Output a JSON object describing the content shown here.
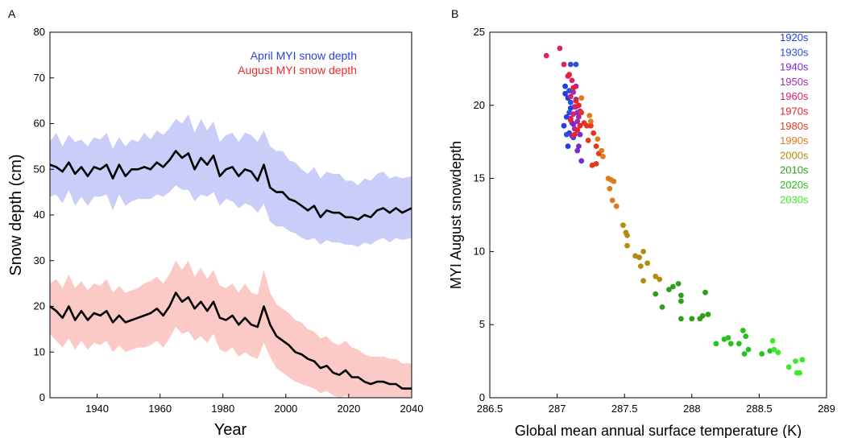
{
  "panels": {
    "a_label": "A",
    "b_label": "B"
  },
  "chart_data": [
    {
      "type": "line",
      "panel": "A",
      "xlabel": "Year",
      "ylabel": "Snow depth (cm)",
      "xlim": [
        1925,
        2040
      ],
      "ylim": [
        0,
        80
      ],
      "xticks": [
        1940,
        1960,
        1980,
        2000,
        2020,
        2040
      ],
      "yticks": [
        0,
        10,
        20,
        30,
        40,
        50,
        60,
        70,
        80
      ],
      "grid": false,
      "legend_position": "top-right",
      "legend": [
        {
          "label": "April MYI snow depth",
          "color": "#2b3fe0"
        },
        {
          "label": "August MYI snow depth",
          "color": "#ee2a2a"
        }
      ],
      "series": [
        {
          "name": "April MYI snow depth",
          "line_color": "#000000",
          "band_color": "#c9cdf7",
          "x": [
            1925,
            1927,
            1929,
            1931,
            1933,
            1935,
            1937,
            1939,
            1941,
            1943,
            1945,
            1947,
            1949,
            1951,
            1953,
            1955,
            1957,
            1959,
            1961,
            1963,
            1965,
            1967,
            1969,
            1971,
            1973,
            1975,
            1977,
            1979,
            1981,
            1983,
            1985,
            1987,
            1989,
            1991,
            1993,
            1995,
            1997,
            1999,
            2001,
            2003,
            2005,
            2007,
            2009,
            2011,
            2013,
            2015,
            2017,
            2019,
            2021,
            2023,
            2025,
            2027,
            2029,
            2031,
            2033,
            2035,
            2037,
            2040
          ],
          "mean": [
            51,
            50.5,
            49.5,
            51.5,
            49,
            50.5,
            48.5,
            50.5,
            50,
            51,
            48,
            51,
            48.5,
            50,
            50,
            50.5,
            50,
            51.5,
            50.5,
            52,
            54,
            52.5,
            53.5,
            50,
            52.5,
            51,
            53,
            48.5,
            50,
            50.5,
            48.5,
            50,
            49.5,
            47.5,
            51,
            46,
            45,
            45,
            43.5,
            43,
            42,
            41,
            42,
            39.5,
            41,
            40.5,
            40.5,
            39.5,
            39.5,
            39,
            40,
            39.5,
            41,
            41.5,
            40.5,
            41.5,
            40.5,
            41.5
          ],
          "upper": [
            56,
            58,
            55,
            57.5,
            56,
            56.5,
            55,
            57,
            56.5,
            58,
            54.5,
            57,
            55,
            56.5,
            56,
            58,
            56.5,
            58.5,
            57.5,
            59,
            61,
            60,
            62,
            58,
            61,
            58.5,
            60.5,
            56,
            57.5,
            58,
            56,
            58,
            57.5,
            56,
            58.5,
            55,
            54,
            54,
            52,
            51.5,
            50,
            49,
            50.5,
            48,
            49.5,
            49,
            49,
            47.5,
            47.5,
            46.5,
            48,
            47.5,
            49,
            49.5,
            48,
            48.5,
            48,
            48.5
          ],
          "lower": [
            44,
            44.5,
            42.5,
            45.5,
            42,
            44,
            42,
            44,
            44,
            44.5,
            41,
            44.5,
            42,
            43,
            43.5,
            43.5,
            43.5,
            44.5,
            44,
            45,
            46.5,
            45.5,
            45.5,
            43,
            44.5,
            44,
            45,
            42,
            43.5,
            43,
            41.5,
            42.5,
            42,
            40.5,
            42.5,
            38.5,
            37.5,
            37.5,
            36.5,
            36,
            35,
            34.5,
            35,
            33.5,
            34.5,
            34,
            34,
            33.5,
            33.5,
            33,
            34,
            33.5,
            34.5,
            35,
            34,
            35,
            34.5,
            35
          ]
        },
        {
          "name": "August MYI snow depth",
          "line_color": "#000000",
          "band_color": "#fbc9c6",
          "x": [
            1925,
            1927,
            1929,
            1931,
            1933,
            1935,
            1937,
            1939,
            1941,
            1943,
            1945,
            1947,
            1949,
            1951,
            1953,
            1955,
            1957,
            1959,
            1961,
            1963,
            1965,
            1967,
            1969,
            1971,
            1973,
            1975,
            1977,
            1979,
            1981,
            1983,
            1985,
            1987,
            1989,
            1991,
            1993,
            1995,
            1997,
            1999,
            2001,
            2003,
            2005,
            2007,
            2009,
            2011,
            2013,
            2015,
            2017,
            2019,
            2021,
            2023,
            2025,
            2027,
            2029,
            2031,
            2033,
            2035,
            2037,
            2040
          ],
          "mean": [
            20,
            19,
            17.5,
            20,
            17,
            19,
            17,
            18.5,
            18,
            19,
            16.5,
            18,
            16.5,
            17,
            17.5,
            18,
            18.5,
            19.5,
            18,
            20,
            23,
            21,
            22,
            19.5,
            21,
            19,
            21,
            17.5,
            17,
            18,
            16,
            17.5,
            16,
            15.5,
            20,
            16,
            13.5,
            12.5,
            11.5,
            10,
            9.5,
            8.5,
            8,
            6.5,
            7,
            5.5,
            5,
            6,
            4.5,
            4.5,
            3.5,
            3,
            3.5,
            3.5,
            3,
            3,
            2,
            2
          ],
          "upper": [
            25,
            26,
            24,
            27,
            24,
            25.5,
            23.5,
            25,
            24.5,
            26,
            23,
            24.5,
            23,
            23.5,
            24,
            25,
            25.5,
            26.5,
            25,
            27,
            30,
            28,
            30,
            26.5,
            28.5,
            26,
            28,
            24.5,
            24,
            25,
            23,
            25,
            23,
            22.5,
            28,
            23,
            20.5,
            19.5,
            18.5,
            17,
            16.5,
            15,
            14.5,
            13,
            13.5,
            12,
            11.5,
            12.5,
            11,
            10.5,
            9.5,
            9,
            9,
            9,
            8.5,
            8.5,
            7.5,
            7.5
          ],
          "lower": [
            14,
            12.5,
            11,
            13,
            10.5,
            12.5,
            10.5,
            12,
            11.5,
            12.5,
            10,
            11.5,
            10,
            10.5,
            11,
            11,
            11.5,
            12.5,
            11,
            13,
            15.5,
            14,
            14.5,
            12.5,
            13.5,
            12,
            14,
            10.5,
            10,
            11,
            9,
            10,
            9,
            8.5,
            12,
            9,
            6.5,
            5.5,
            4.5,
            3.5,
            3,
            2.5,
            2,
            1,
            1.5,
            0.5,
            0,
            0.5,
            0,
            0,
            0,
            0,
            0,
            0,
            0,
            0,
            0,
            0
          ]
        }
      ]
    },
    {
      "type": "scatter",
      "panel": "B",
      "xlabel": "Global mean annual surface temperature (K)",
      "ylabel": "MYI August snowdepth",
      "xlim": [
        286.5,
        289
      ],
      "ylim": [
        0,
        25
      ],
      "xticks": [
        "286.5",
        "287",
        "287.5",
        "288",
        "288.5",
        "289"
      ],
      "yticks": [
        0,
        5,
        10,
        15,
        20,
        25
      ],
      "grid": false,
      "legend_position": "top-right",
      "series": [
        {
          "name": "1920s",
          "color": "#1f3de8",
          "points": [
            [
              287.05,
              18.6
            ],
            [
              287.07,
              19.2
            ],
            [
              287.08,
              20.5
            ],
            [
              287.06,
              21.3
            ],
            [
              287.09,
              18.1
            ],
            [
              287.1,
              19.8
            ],
            [
              287.08,
              17.2
            ],
            [
              287.06,
              20.8
            ]
          ]
        },
        {
          "name": "1930s",
          "color": "#2850dd",
          "points": [
            [
              287.07,
              18.0
            ],
            [
              287.09,
              19.5
            ],
            [
              287.1,
              22.8
            ],
            [
              287.14,
              22.8
            ],
            [
              287.11,
              18.8
            ],
            [
              287.09,
              21.0
            ],
            [
              287.12,
              17.8
            ],
            [
              287.1,
              20.2
            ]
          ]
        },
        {
          "name": "1940s",
          "color": "#7a2ad0",
          "points": [
            [
              287.12,
              18.7
            ],
            [
              287.15,
              19.5
            ],
            [
              287.17,
              18.0
            ],
            [
              287.15,
              16.9
            ],
            [
              287.18,
              16.2
            ],
            [
              287.13,
              19.9
            ],
            [
              287.16,
              17.2
            ],
            [
              287.14,
              20.4
            ]
          ]
        },
        {
          "name": "1950s",
          "color": "#a52aa8",
          "points": [
            [
              287.1,
              19.1
            ],
            [
              287.13,
              18.4
            ],
            [
              287.16,
              19.2
            ],
            [
              287.12,
              20.9
            ],
            [
              287.14,
              21.3
            ],
            [
              287.11,
              17.9
            ],
            [
              287.15,
              18.9
            ],
            [
              287.17,
              19.6
            ]
          ]
        },
        {
          "name": "1960s",
          "color": "#dc1e6e",
          "points": [
            [
              286.92,
              23.4
            ],
            [
              287.02,
              23.9
            ],
            [
              287.05,
              22.8
            ],
            [
              287.08,
              22.0
            ],
            [
              287.11,
              21.7
            ],
            [
              287.12,
              19.4
            ],
            [
              287.1,
              20.6
            ],
            [
              287.14,
              19.9
            ]
          ]
        },
        {
          "name": "1970s",
          "color": "#e8232a",
          "points": [
            [
              287.09,
              22.1
            ],
            [
              287.12,
              21.2
            ],
            [
              287.14,
              20.3
            ],
            [
              287.16,
              20.0
            ],
            [
              287.1,
              19.0
            ],
            [
              287.15,
              18.3
            ],
            [
              287.13,
              18.0
            ],
            [
              287.17,
              18.6
            ]
          ]
        },
        {
          "name": "1980s",
          "color": "#e8351c",
          "points": [
            [
              287.18,
              19.5
            ],
            [
              287.2,
              18.8
            ],
            [
              287.22,
              18.6
            ],
            [
              287.25,
              18.6
            ],
            [
              287.27,
              18.1
            ],
            [
              287.23,
              17.6
            ],
            [
              287.29,
              17.2
            ],
            [
              287.26,
              15.9
            ],
            [
              287.29,
              16.0
            ],
            [
              287.31,
              16.7
            ]
          ]
        },
        {
          "name": "1990s",
          "color": "#e07a1e",
          "points": [
            [
              287.18,
              20.5
            ],
            [
              287.24,
              19.3
            ],
            [
              287.25,
              18.9
            ],
            [
              287.3,
              17.7
            ],
            [
              287.33,
              16.9
            ],
            [
              287.38,
              15.0
            ],
            [
              287.4,
              14.9
            ],
            [
              287.39,
              14.3
            ],
            [
              287.41,
              13.5
            ],
            [
              287.44,
              13.1
            ],
            [
              287.42,
              14.8
            ],
            [
              287.34,
              16.5
            ]
          ]
        },
        {
          "name": "2000s",
          "color": "#b08c10",
          "points": [
            [
              287.49,
              11.8
            ],
            [
              287.52,
              11.1
            ],
            [
              287.51,
              11.3
            ],
            [
              287.52,
              10.4
            ],
            [
              287.58,
              9.7
            ],
            [
              287.61,
              9.6
            ],
            [
              287.64,
              10.0
            ],
            [
              287.62,
              9.0
            ],
            [
              287.67,
              9.2
            ],
            [
              287.64,
              8.0
            ],
            [
              287.73,
              8.3
            ],
            [
              287.76,
              8.1
            ]
          ]
        },
        {
          "name": "2010s",
          "color": "#2f9e18",
          "points": [
            [
              287.73,
              7.1
            ],
            [
              287.78,
              6.2
            ],
            [
              287.83,
              7.4
            ],
            [
              287.86,
              7.6
            ],
            [
              287.9,
              7.8
            ],
            [
              287.92,
              7.0
            ],
            [
              287.92,
              6.6
            ],
            [
              287.92,
              5.4
            ],
            [
              288.0,
              5.4
            ],
            [
              288.06,
              5.4
            ],
            [
              288.08,
              5.6
            ],
            [
              288.1,
              7.2
            ],
            [
              288.12,
              5.7
            ]
          ]
        },
        {
          "name": "2020s",
          "color": "#25c21e",
          "points": [
            [
              288.18,
              3.7
            ],
            [
              288.24,
              4.0
            ],
            [
              288.27,
              4.1
            ],
            [
              288.29,
              3.7
            ],
            [
              288.35,
              3.7
            ],
            [
              288.38,
              4.6
            ],
            [
              288.4,
              4.2
            ],
            [
              288.39,
              3.0
            ],
            [
              288.42,
              3.3
            ],
            [
              288.52,
              3.0
            ],
            [
              288.58,
              3.2
            ]
          ]
        },
        {
          "name": "2030s",
          "color": "#3ee82a",
          "points": [
            [
              288.6,
              3.9
            ],
            [
              288.61,
              3.3
            ],
            [
              288.64,
              3.1
            ],
            [
              288.72,
              2.1
            ],
            [
              288.77,
              2.5
            ],
            [
              288.78,
              1.7
            ],
            [
              288.8,
              1.7
            ],
            [
              288.82,
              2.6
            ]
          ]
        }
      ]
    }
  ]
}
